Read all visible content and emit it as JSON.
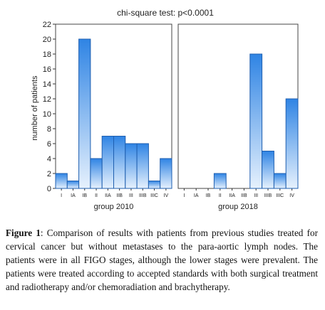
{
  "chart_data": {
    "type": "bar",
    "title": "chi-square test: p<0.0001",
    "ylabel": "number of patients",
    "ylim": [
      0,
      22
    ],
    "yticks": [
      "0",
      "2",
      "4",
      "6",
      "8",
      "10",
      "12",
      "14",
      "16",
      "18",
      "20",
      "22"
    ],
    "grid": false,
    "bar_color": "#3d8ee8",
    "panels": [
      {
        "xlabel": "group 2010",
        "categories": [
          "I",
          "IA",
          "IB",
          "II",
          "IIA",
          "IIB",
          "III",
          "IIIB",
          "IIIC",
          "IV"
        ],
        "values": [
          2,
          1,
          20,
          4,
          7,
          7,
          6,
          6,
          1,
          4
        ]
      },
      {
        "xlabel": "group 2018",
        "categories": [
          "I",
          "IA",
          "IB",
          "II",
          "IIA",
          "IIB",
          "III",
          "IIIB",
          "IIIC",
          "IV"
        ],
        "values": [
          0,
          0,
          0,
          2,
          0,
          0,
          18,
          5,
          2,
          12
        ]
      }
    ]
  },
  "caption": {
    "label": "Figure 1",
    "text": ": Comparison of results  with patients from previous studies treated for cervical cancer but without metastases to the para-aortic lymph nodes. The patients were in all FIGO stages, although the lower stages were prevalent. The patients were treated according to accepted standards with both surgical treatment and radiotherapy and/or chemoradiation and brachytherapy."
  }
}
